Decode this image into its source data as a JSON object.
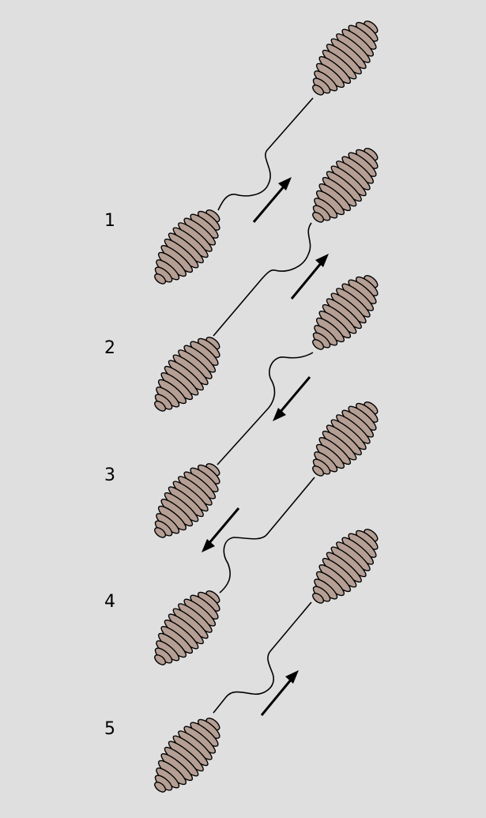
{
  "diagram": {
    "steps": [
      {
        "label": "1",
        "arrow_direction": "up-right"
      },
      {
        "label": "2",
        "arrow_direction": "up-right"
      },
      {
        "label": "3",
        "arrow_direction": "down-left"
      },
      {
        "label": "4",
        "arrow_direction": "down-left"
      },
      {
        "label": "5",
        "arrow_direction": "up-right"
      }
    ],
    "colors": {
      "background": "#dfdfdf",
      "coil_fill": "#b59f94",
      "stroke": "#000000"
    }
  }
}
